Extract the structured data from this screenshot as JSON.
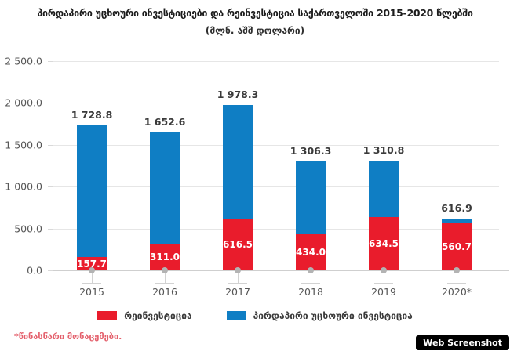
{
  "header": {
    "title": "პირდაპირი უცხოური ინვესტიციები და რეინვესტიცია საქართველოში 2015-2020 წლებში",
    "subtitle": "(მლნ. აშშ დოლარი)"
  },
  "chart_data": {
    "type": "bar",
    "stacked": true,
    "title": "პირდაპირი უცხოური ინვესტიციები და რეინვესტიცია საქართველოში 2015-2020 წლებში",
    "subtitle": "(მლნ. აშშ დოლარი)",
    "categories": [
      "2015",
      "2016",
      "2017",
      "2018",
      "2019",
      "2020*"
    ],
    "series": [
      {
        "name": "რეინვესტიცია",
        "color": "#e91c2c",
        "values": [
          157.7,
          311.0,
          616.5,
          434.0,
          634.5,
          560.7
        ]
      },
      {
        "name": "პირდაპირი უცხოური ინვესტიცია",
        "color": "#0f7ec4",
        "values": [
          1571.1,
          1341.6,
          1361.8,
          872.3,
          676.3,
          56.2
        ]
      }
    ],
    "totals": [
      1728.8,
      1652.6,
      1978.3,
      1306.3,
      1310.8,
      616.9
    ],
    "total_labels": [
      "1 728.8",
      "1 652.6",
      "1 978.3",
      "1 306.3",
      "1 310.8",
      "616.9"
    ],
    "segment_labels": [
      "157.7",
      "311.0",
      "616.5",
      "434.0",
      "634.5",
      "560.7"
    ],
    "ylim": [
      0,
      2500
    ],
    "yticks": [
      0,
      500,
      1000,
      1500,
      2000,
      2500
    ],
    "ytick_labels": [
      "0.0",
      "500.0",
      "1 000.0",
      "1 500.0",
      "2 000.0",
      "2 500.0"
    ],
    "grid": true,
    "legend_position": "bottom"
  },
  "footnote": "*წინასწარი მონაცემები.",
  "badge": "Web Screenshot",
  "colors": {
    "reinvestment_red": "#e91c2c",
    "fdi_blue": "#0f7ec4",
    "footnote_red": "#e4606c",
    "gridline_gray": "#e6e6e6",
    "dot_gray": "#b3b3b3",
    "badge_bg": "#000000"
  }
}
